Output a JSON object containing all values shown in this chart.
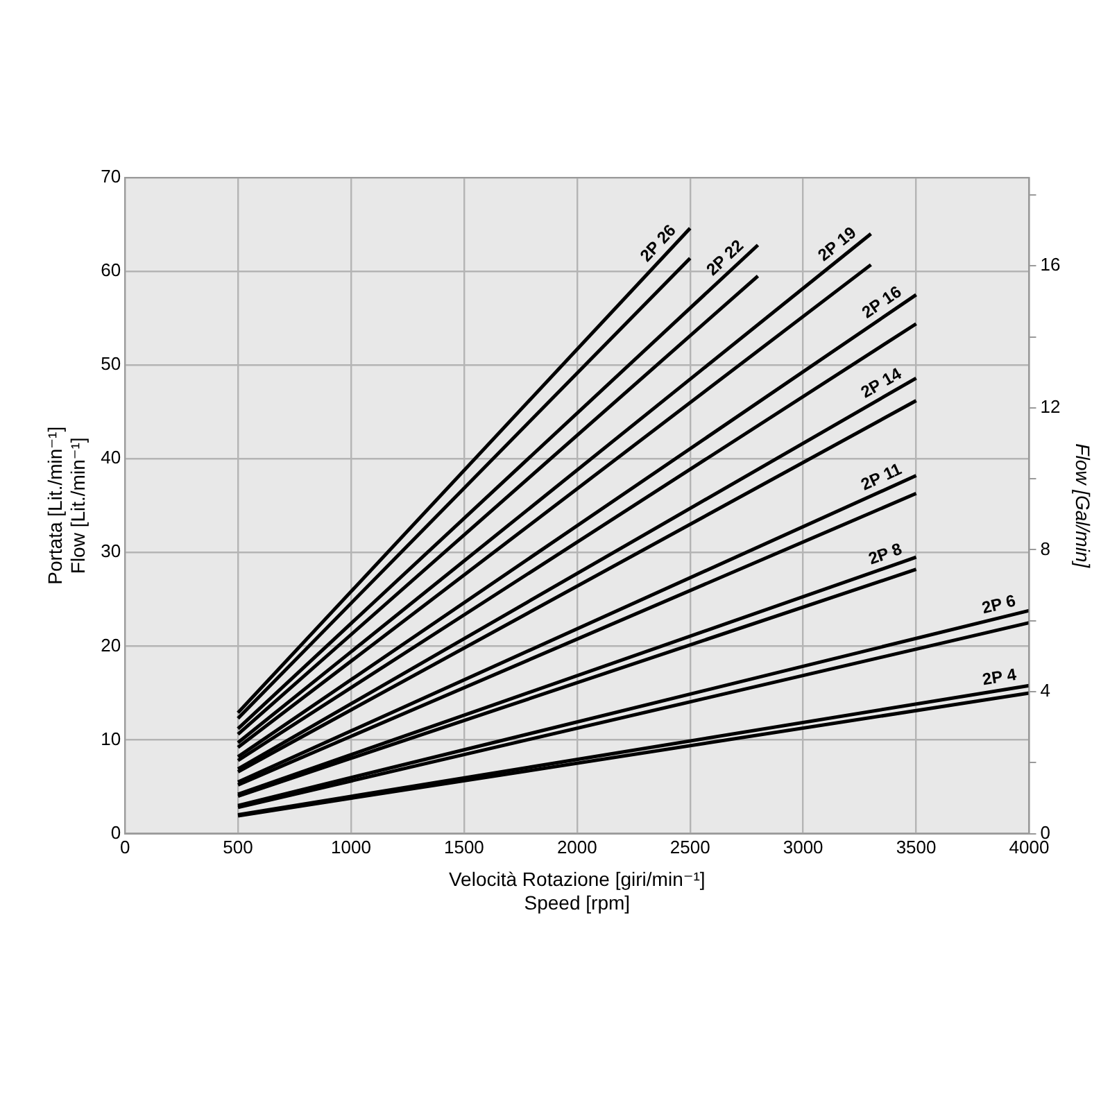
{
  "chart_data": {
    "type": "line",
    "xlabel": "Velocità Rotazione [giri/min⁻¹]\nSpeed [rpm]",
    "ylabel": "Portata [Lit./min⁻¹]\nFlow [Lit./min⁻¹]",
    "y2label": "Flow [Gal/min]",
    "xlim": [
      0,
      4000
    ],
    "xticks": [
      0,
      500,
      1000,
      1500,
      2000,
      2500,
      3000,
      3500,
      4000
    ],
    "ylim": [
      0,
      70
    ],
    "yticks": [
      0,
      10,
      20,
      30,
      40,
      50,
      60,
      70
    ],
    "y2lim": [
      0,
      18.49
    ],
    "y2ticks": [
      0,
      {
        "value": 2,
        "label": null
      },
      4,
      {
        "value": 6,
        "label": null
      },
      8,
      {
        "value": 10,
        "label": null
      },
      12,
      {
        "value": 14,
        "label": null
      },
      16,
      {
        "value": 18,
        "label": null
      }
    ],
    "grid": true,
    "legend": false,
    "marker": "none",
    "line_style": "solid",
    "series": [
      {
        "name": "2P 26",
        "color": "#000000",
        "x": [
          500,
          2500
        ],
        "values": [
          12.9,
          64.6
        ]
      },
      {
        "color": "#000000",
        "x": [
          500,
          2500
        ],
        "values": [
          12.3,
          61.4
        ]
      },
      {
        "name": "2P 22",
        "color": "#000000",
        "x": [
          500,
          2800
        ],
        "values": [
          11.2,
          62.8
        ]
      },
      {
        "color": "#000000",
        "x": [
          500,
          2800
        ],
        "values": [
          10.6,
          59.5
        ]
      },
      {
        "name": "2P 19",
        "color": "#000000",
        "x": [
          500,
          3300
        ],
        "values": [
          9.7,
          64.0
        ]
      },
      {
        "color": "#000000",
        "x": [
          500,
          3300
        ],
        "values": [
          9.2,
          60.7
        ]
      },
      {
        "name": "2P 16",
        "color": "#000000",
        "x": [
          500,
          3500
        ],
        "values": [
          8.2,
          57.5
        ]
      },
      {
        "color": "#000000",
        "x": [
          500,
          3500
        ],
        "values": [
          7.8,
          54.4
        ]
      },
      {
        "name": "2P 14",
        "color": "#000000",
        "x": [
          500,
          3500
        ],
        "values": [
          6.9,
          48.6
        ]
      },
      {
        "color": "#000000",
        "x": [
          500,
          3500
        ],
        "values": [
          6.6,
          46.2
        ]
      },
      {
        "name": "2P 11",
        "color": "#000000",
        "x": [
          500,
          3500
        ],
        "values": [
          5.5,
          38.2
        ]
      },
      {
        "color": "#000000",
        "x": [
          500,
          3500
        ],
        "values": [
          5.2,
          36.3
        ]
      },
      {
        "name": "2P 8",
        "color": "#000000",
        "x": [
          500,
          3500
        ],
        "values": [
          4.2,
          29.5
        ]
      },
      {
        "color": "#000000",
        "x": [
          500,
          3500
        ],
        "values": [
          4.0,
          28.2
        ]
      },
      {
        "name": "2P 6",
        "color": "#000000",
        "x": [
          500,
          4000
        ],
        "values": [
          3.0,
          23.8
        ]
      },
      {
        "color": "#000000",
        "x": [
          500,
          4000
        ],
        "values": [
          2.8,
          22.5
        ]
      },
      {
        "name": "2P 4",
        "color": "#000000",
        "x": [
          500,
          4000
        ],
        "values": [
          2.0,
          15.8
        ]
      },
      {
        "color": "#000000",
        "x": [
          500,
          4000
        ],
        "values": [
          1.9,
          15.0
        ]
      }
    ]
  }
}
